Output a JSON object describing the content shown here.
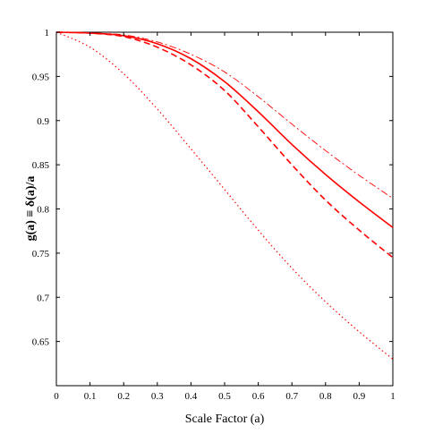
{
  "chart_data": {
    "type": "line",
    "title": "",
    "xlabel": "Scale Factor (a)",
    "ylabel": "g(a) ≡ δ(a)/a",
    "xlim": [
      0,
      1
    ],
    "ylim": [
      0.6,
      1
    ],
    "grid": false,
    "x_ticks": [
      "0",
      "0.1",
      "0.2",
      "0.3",
      "0.4",
      "0.5",
      "0.6",
      "0.7",
      "0.8",
      "0.9",
      "1"
    ],
    "y_ticks": [
      "0.65",
      "0.7",
      "0.75",
      "0.8",
      "0.85",
      "0.9",
      "0.95",
      "1"
    ],
    "x": [
      0.0,
      0.1,
      0.2,
      0.3,
      0.4,
      0.5,
      0.6,
      0.7,
      0.8,
      0.9,
      1.0
    ],
    "series": [
      {
        "style": "solid",
        "color": "#ff0000",
        "values": [
          1.0,
          0.999,
          0.996,
          0.987,
          0.97,
          0.944,
          0.91,
          0.873,
          0.839,
          0.808,
          0.779
        ]
      },
      {
        "style": "dashed",
        "color": "#ff0000",
        "values": [
          1.0,
          0.999,
          0.995,
          0.983,
          0.963,
          0.934,
          0.893,
          0.85,
          0.81,
          0.776,
          0.745
        ]
      },
      {
        "style": "dashdot",
        "color": "#ff0000",
        "values": [
          1.0,
          0.999,
          0.997,
          0.989,
          0.975,
          0.955,
          0.927,
          0.896,
          0.866,
          0.838,
          0.812
        ]
      },
      {
        "style": "dotted",
        "color": "#ff0000",
        "values": [
          1.0,
          0.983,
          0.953,
          0.913,
          0.868,
          0.822,
          0.776,
          0.733,
          0.695,
          0.661,
          0.63
        ]
      }
    ]
  }
}
